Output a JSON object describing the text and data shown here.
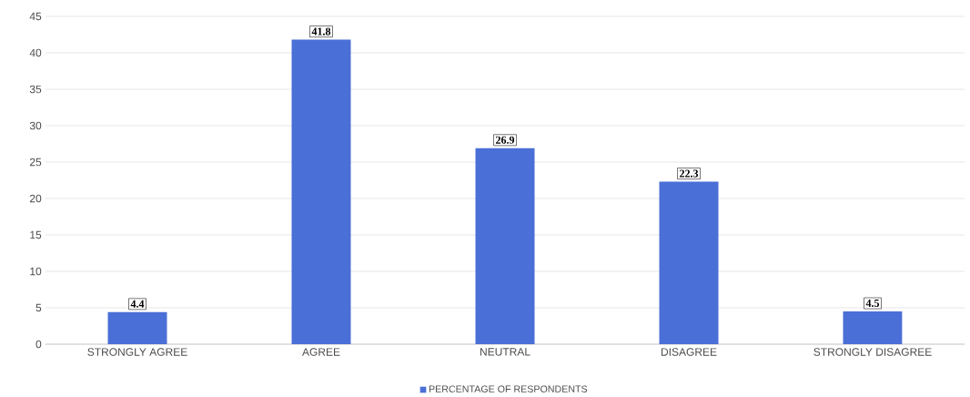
{
  "chart_data": {
    "type": "bar",
    "categories": [
      "STRONGLY AGREE",
      "AGREE",
      "NEUTRAL",
      "DISAGREE",
      "STRONGLY DISAGREE"
    ],
    "series": [
      {
        "name": "PERCENTAGE OF RESPONDENTS",
        "color": "#4a6fd6",
        "values": [
          4.4,
          41.8,
          26.9,
          22.3,
          4.5
        ]
      }
    ],
    "ylim": [
      0,
      45
    ],
    "yticks": [
      0,
      5,
      10,
      15,
      20,
      25,
      30,
      35,
      40,
      45
    ],
    "grid": "y",
    "legend": "bottom",
    "data_labels": true
  }
}
